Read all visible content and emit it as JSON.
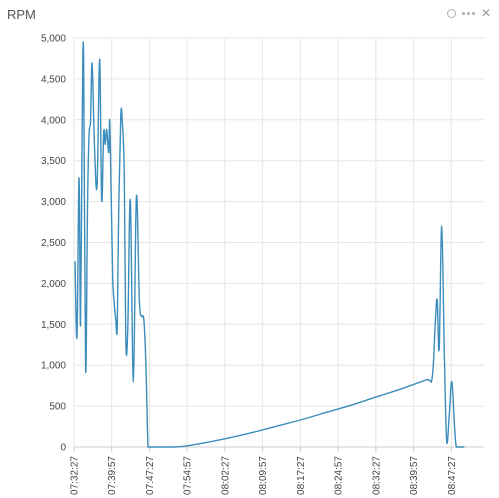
{
  "panel": {
    "title": "RPM",
    "actions": [
      "circle-icon",
      "more-icon",
      "close-icon"
    ]
  },
  "colors": {
    "line": "#3c8dbc",
    "grid": "#e6e6e6",
    "axis": "#cccccc",
    "text": "#444444"
  },
  "chart_data": {
    "type": "line",
    "title": "RPM",
    "xlabel": "",
    "ylabel": "",
    "ylim": [
      0,
      5000
    ],
    "yticks": [
      0,
      500,
      1000,
      1500,
      2000,
      2500,
      3000,
      3500,
      4000,
      4500,
      5000
    ],
    "ytick_labels": [
      "0",
      "500",
      "1,000",
      "1,500",
      "2,000",
      "2,500",
      "3,000",
      "3,500",
      "4,000",
      "4,500",
      "5,000"
    ],
    "xlim_minutes": [
      0,
      81.5
    ],
    "xticks_minutes": [
      0,
      7.5,
      15,
      22.5,
      30,
      37.5,
      45,
      52.5,
      60,
      67.5,
      75
    ],
    "xtick_labels": [
      "07:32:27",
      "07:39:57",
      "07:47:27",
      "07:54:57",
      "08:02:27",
      "08:09:57",
      "08:17:27",
      "08:24:57",
      "08:32:27",
      "08:39:57",
      "08:47:27"
    ],
    "grid": true,
    "series": [
      {
        "x": [
          0.2,
          0.6,
          1.0,
          1.3,
          1.6,
          1.9,
          2.3,
          2.7,
          3.0,
          3.3,
          3.6,
          4.1,
          4.6,
          5.1,
          5.5,
          5.9,
          6.2,
          6.5,
          6.9,
          7.1,
          7.4,
          7.7,
          8.0,
          8.3,
          8.6,
          8.9,
          9.3,
          9.6,
          10.0,
          10.3,
          10.7,
          11.2,
          11.8,
          12.4,
          13.0,
          13.5,
          13.9,
          14.3,
          14.7,
          15.0,
          15.3,
          15.7,
          16.1,
          16.5,
          16.8,
          17.1,
          17.4,
          17.9,
          18.4,
          18.8,
          19.1,
          19.4,
          19.6,
          20.0,
          22.0,
          25.0,
          30.0,
          35.0,
          40.0,
          45.0,
          50.0,
          55.0,
          60.0,
          65.0,
          70.0,
          71.2,
          71.8,
          72.2,
          72.6,
          73.1,
          73.6,
          74.1,
          74.6,
          75.1,
          75.6,
          76.0,
          76.6,
          77.2,
          77.6
        ],
        "y": [
          2270,
          1350,
          3290,
          1480,
          3650,
          4830,
          950,
          3000,
          3820,
          4000,
          4690,
          3640,
          3200,
          4740,
          3020,
          3850,
          3700,
          3880,
          3600,
          3990,
          3050,
          2060,
          1760,
          1560,
          1480,
          2980,
          4050,
          3980,
          3300,
          1300,
          1450,
          3020,
          800,
          3060,
          1780,
          1600,
          1550,
          1000,
          0,
          0,
          0,
          0,
          0,
          0,
          0,
          0,
          0,
          0,
          0,
          0,
          0,
          0,
          0,
          0,
          10,
          40,
          100,
          170,
          250,
          330,
          420,
          510,
          610,
          710,
          820,
          850,
          1500,
          1800,
          1200,
          2700,
          1150,
          50,
          400,
          800,
          300,
          0,
          0,
          0,
          0
        ]
      }
    ]
  }
}
